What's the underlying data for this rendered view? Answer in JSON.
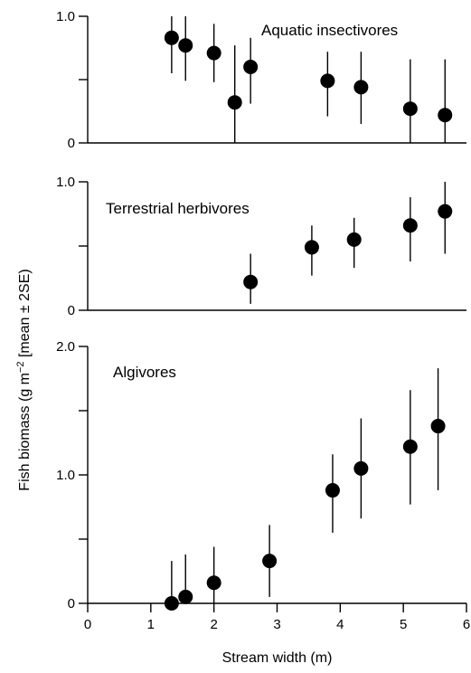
{
  "chart_data": {
    "type": "scatter",
    "error_bars": "mean ± 2SE",
    "x": {
      "label": "Stream width (m)",
      "range": [
        0,
        6
      ],
      "ticks": [
        "0",
        "1",
        "2",
        "3",
        "4",
        "5",
        "6"
      ]
    },
    "y_label": {
      "pre": "Fish biomass (g m",
      "sup": "−2",
      "post": " [mean ± 2SE)"
    },
    "panels": [
      {
        "title": "Aquatic insectivores",
        "ylim": [
          0,
          1.0
        ],
        "yticks": [
          {
            "value": 0,
            "label": "0"
          },
          {
            "value": 0.5,
            "label": ""
          },
          {
            "value": 1.0,
            "label": "1.0"
          }
        ],
        "points": [
          {
            "x": 1.33,
            "y": 0.83,
            "lo": 0.55,
            "hi": 1.0
          },
          {
            "x": 1.55,
            "y": 0.77,
            "lo": 0.49,
            "hi": 1.0
          },
          {
            "x": 2.0,
            "y": 0.71,
            "lo": 0.48,
            "hi": 0.94
          },
          {
            "x": 2.33,
            "y": 0.32,
            "lo": 0.0,
            "hi": 0.77
          },
          {
            "x": 2.58,
            "y": 0.6,
            "lo": 0.31,
            "hi": 0.83
          },
          {
            "x": 3.8,
            "y": 0.49,
            "lo": 0.21,
            "hi": 0.72
          },
          {
            "x": 4.33,
            "y": 0.44,
            "lo": 0.15,
            "hi": 0.72
          },
          {
            "x": 5.11,
            "y": 0.27,
            "lo": 0.0,
            "hi": 0.66
          },
          {
            "x": 5.66,
            "y": 0.22,
            "lo": 0.0,
            "hi": 0.66
          }
        ]
      },
      {
        "title": "Terrestrial herbivores",
        "ylim": [
          0,
          1.0
        ],
        "yticks": [
          {
            "value": 0,
            "label": "0"
          },
          {
            "value": 0.5,
            "label": ""
          },
          {
            "value": 1.0,
            "label": "1.0"
          }
        ],
        "points": [
          {
            "x": 2.58,
            "y": 0.22,
            "lo": 0.05,
            "hi": 0.44
          },
          {
            "x": 3.55,
            "y": 0.49,
            "lo": 0.27,
            "hi": 0.66
          },
          {
            "x": 4.22,
            "y": 0.55,
            "lo": 0.33,
            "hi": 0.72
          },
          {
            "x": 5.11,
            "y": 0.66,
            "lo": 0.38,
            "hi": 0.88
          },
          {
            "x": 5.66,
            "y": 0.77,
            "lo": 0.44,
            "hi": 1.0
          }
        ]
      },
      {
        "title": "Algivores",
        "ylim": [
          0,
          2.0
        ],
        "yticks": [
          {
            "value": 0,
            "label": "0"
          },
          {
            "value": 0.5,
            "label": ""
          },
          {
            "value": 1.0,
            "label": "1.0"
          },
          {
            "value": 1.5,
            "label": ""
          },
          {
            "value": 2.0,
            "label": "2.0"
          }
        ],
        "points": [
          {
            "x": 1.33,
            "y": 0.0,
            "lo": 0.0,
            "hi": 0.33
          },
          {
            "x": 1.55,
            "y": 0.05,
            "lo": 0.0,
            "hi": 0.38
          },
          {
            "x": 2.0,
            "y": 0.16,
            "lo": 0.0,
            "hi": 0.44
          },
          {
            "x": 2.88,
            "y": 0.33,
            "lo": 0.05,
            "hi": 0.61
          },
          {
            "x": 3.88,
            "y": 0.88,
            "lo": 0.55,
            "hi": 1.16
          },
          {
            "x": 4.33,
            "y": 1.05,
            "lo": 0.66,
            "hi": 1.44
          },
          {
            "x": 5.11,
            "y": 1.22,
            "lo": 0.77,
            "hi": 1.66
          },
          {
            "x": 5.55,
            "y": 1.38,
            "lo": 0.88,
            "hi": 1.83
          }
        ]
      }
    ]
  }
}
